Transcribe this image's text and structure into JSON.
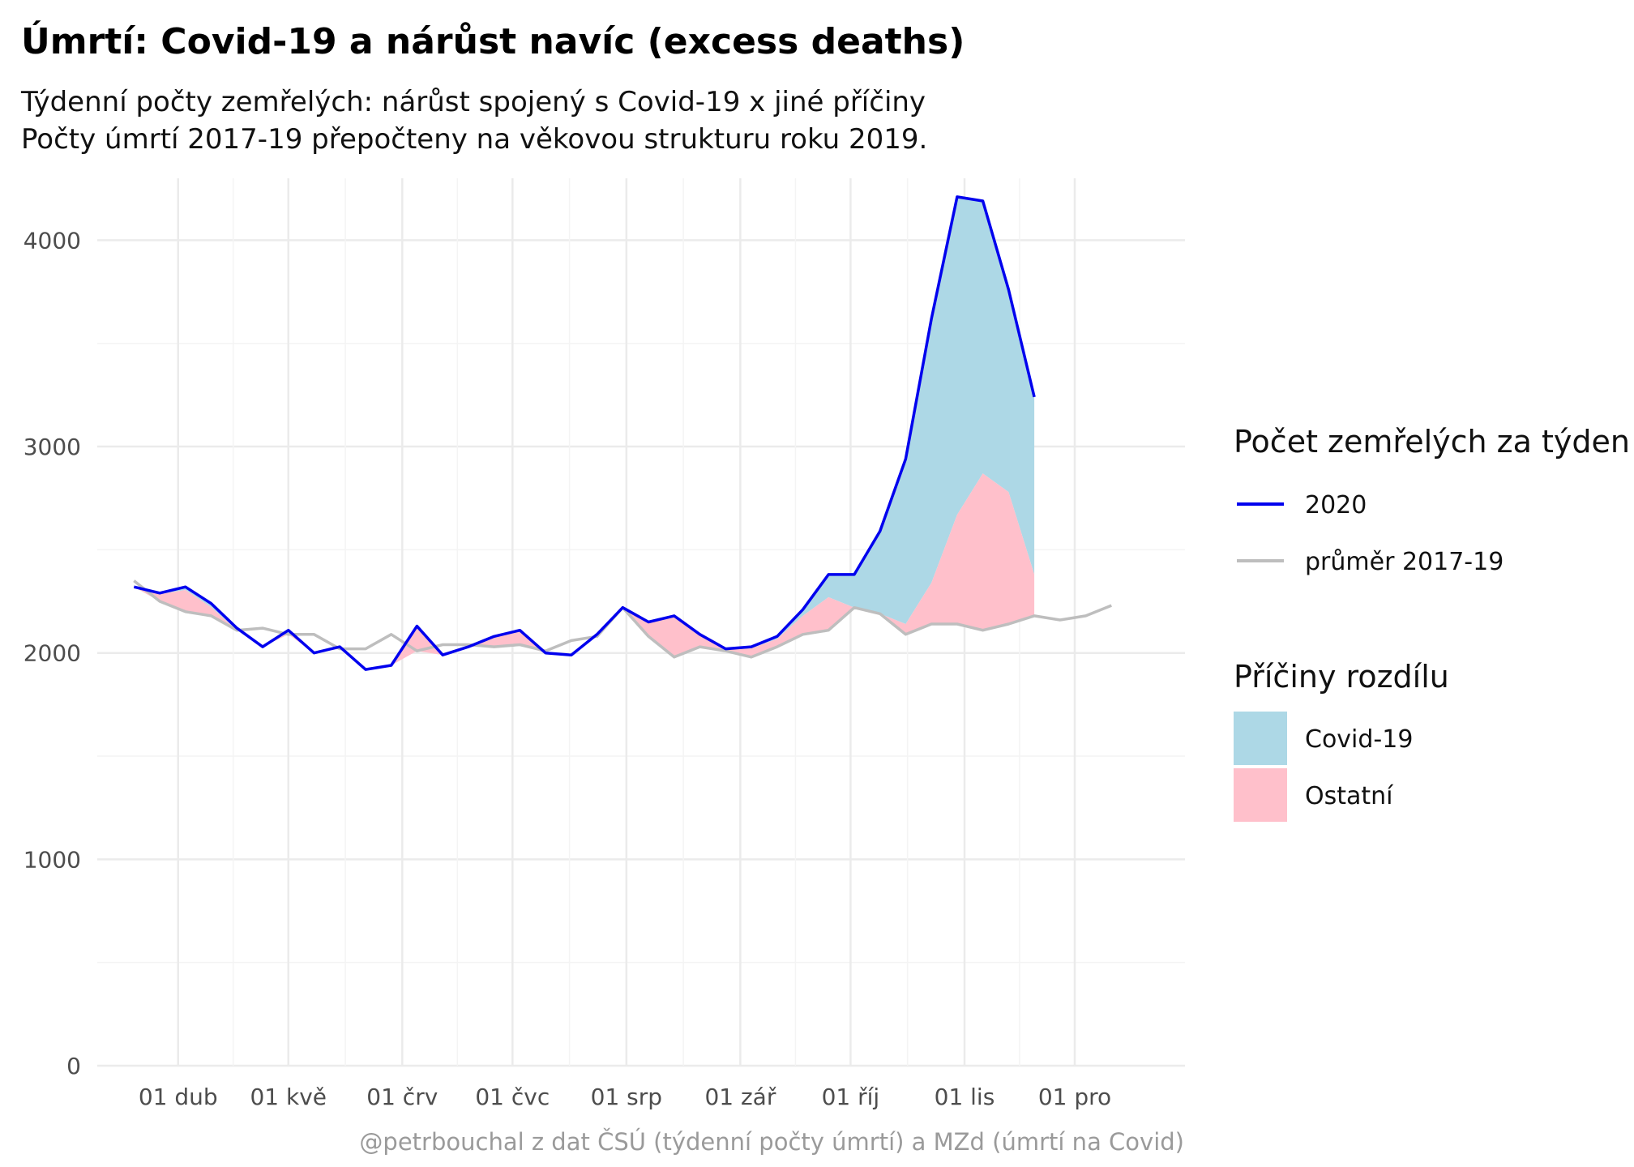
{
  "title": "Úmrtí: Covid-19 a nárůst navíc (excess deaths)",
  "subtitle_line1": "Týdenní počty zemřelých: nárůst spojený s Covid-19 x jiné příčiny",
  "subtitle_line2": "Počty úmrtí 2017-19 přepočteny na věkovou strukturu roku 2019.",
  "caption": "@petrbouchal z dat ČSÚ (týdenní počty úmrtí) a MZd (úmrtí na Covid)",
  "colors": {
    "line_2020": "#0000ee",
    "line_avg": "#bebebe",
    "covid": "#add8e6",
    "other": "#ffc0cb",
    "grid": "#ebebeb"
  },
  "legend": {
    "lines_title": "Počet zemřelých za týden",
    "lines": [
      {
        "label": "2020",
        "color": "#0000ee"
      },
      {
        "label": "průměr 2017-19",
        "color": "#bebebe"
      }
    ],
    "fills_title": "Příčiny rozdílu",
    "fills": [
      {
        "label": "Covid-19",
        "color": "#add8e6"
      },
      {
        "label": "Ostatní",
        "color": "#ffc0cb"
      }
    ]
  },
  "chart_data": {
    "type": "area",
    "title": "Úmrtí: Covid-19 a nárůst navíc (excess deaths)",
    "xlabel": "",
    "ylabel": "",
    "ylim": [
      0,
      4300
    ],
    "yticks": [
      0,
      1000,
      2000,
      3000,
      4000
    ],
    "xlim": [
      "2020-03-10",
      "2020-12-31"
    ],
    "xticks": [
      {
        "date": "2020-04-01",
        "label": "01 dub"
      },
      {
        "date": "2020-05-01",
        "label": "01 kvě"
      },
      {
        "date": "2020-06-01",
        "label": "01 črv"
      },
      {
        "date": "2020-07-01",
        "label": "01 čvc"
      },
      {
        "date": "2020-08-01",
        "label": "01 srp"
      },
      {
        "date": "2020-09-01",
        "label": "01 zář"
      },
      {
        "date": "2020-10-01",
        "label": "01 říj"
      },
      {
        "date": "2020-11-01",
        "label": "01 lis"
      },
      {
        "date": "2020-12-01",
        "label": "01 pro"
      }
    ],
    "grid": true,
    "legend_position": "right",
    "series": [
      {
        "name": "2020",
        "dates": [
          "2020-03-20",
          "2020-03-27",
          "2020-04-03",
          "2020-04-10",
          "2020-04-17",
          "2020-04-24",
          "2020-05-01",
          "2020-05-08",
          "2020-05-15",
          "2020-05-22",
          "2020-05-29",
          "2020-06-05",
          "2020-06-12",
          "2020-06-19",
          "2020-06-26",
          "2020-07-03",
          "2020-07-10",
          "2020-07-17",
          "2020-07-24",
          "2020-07-31",
          "2020-08-07",
          "2020-08-14",
          "2020-08-21",
          "2020-08-28",
          "2020-09-04",
          "2020-09-11",
          "2020-09-18",
          "2020-09-25",
          "2020-10-02",
          "2020-10-09",
          "2020-10-16",
          "2020-10-23",
          "2020-10-30",
          "2020-11-06",
          "2020-11-13",
          "2020-11-20"
        ],
        "values": [
          2320,
          2290,
          2320,
          2240,
          2120,
          2030,
          2110,
          2000,
          2030,
          1920,
          1940,
          2130,
          1990,
          2030,
          2080,
          2110,
          2000,
          1990,
          2090,
          2220,
          2150,
          2180,
          2090,
          2020,
          2030,
          2080,
          2210,
          2380,
          2380,
          2590,
          2940,
          3620,
          4210,
          4190,
          3760,
          3240
        ]
      },
      {
        "name": "průměr 2017-19",
        "dates": [
          "2020-03-20",
          "2020-03-27",
          "2020-04-03",
          "2020-04-10",
          "2020-04-17",
          "2020-04-24",
          "2020-05-01",
          "2020-05-08",
          "2020-05-15",
          "2020-05-22",
          "2020-05-29",
          "2020-06-05",
          "2020-06-12",
          "2020-06-19",
          "2020-06-26",
          "2020-07-03",
          "2020-07-10",
          "2020-07-17",
          "2020-07-24",
          "2020-07-31",
          "2020-08-07",
          "2020-08-14",
          "2020-08-21",
          "2020-08-28",
          "2020-09-04",
          "2020-09-11",
          "2020-09-18",
          "2020-09-25",
          "2020-10-02",
          "2020-10-09",
          "2020-10-16",
          "2020-10-23",
          "2020-10-30",
          "2020-11-06",
          "2020-11-13",
          "2020-11-20",
          "2020-11-27",
          "2020-12-04",
          "2020-12-11"
        ],
        "values": [
          2350,
          2250,
          2200,
          2180,
          2110,
          2120,
          2090,
          2090,
          2020,
          2020,
          2090,
          2010,
          2040,
          2040,
          2030,
          2040,
          2010,
          2060,
          2080,
          2220,
          2080,
          1980,
          2030,
          2010,
          1980,
          2030,
          2090,
          2110,
          2220,
          2190,
          2090,
          2140,
          2140,
          2110,
          2140,
          2180,
          2160,
          2180,
          2230
        ]
      },
      {
        "name": "Covid-19",
        "dates": [
          "2020-03-20",
          "2020-03-27",
          "2020-04-03",
          "2020-04-10",
          "2020-04-17",
          "2020-04-24",
          "2020-05-01",
          "2020-05-08",
          "2020-05-15",
          "2020-05-22",
          "2020-05-29",
          "2020-06-05",
          "2020-06-12",
          "2020-06-19",
          "2020-06-26",
          "2020-07-03",
          "2020-07-10",
          "2020-07-17",
          "2020-07-24",
          "2020-07-31",
          "2020-08-07",
          "2020-08-14",
          "2020-08-21",
          "2020-08-28",
          "2020-09-04",
          "2020-09-11",
          "2020-09-18",
          "2020-09-25",
          "2020-10-02",
          "2020-10-09",
          "2020-10-16",
          "2020-10-23",
          "2020-10-30",
          "2020-11-06",
          "2020-11-13",
          "2020-11-20"
        ],
        "values": [
          2,
          5,
          15,
          18,
          16,
          14,
          12,
          10,
          8,
          5,
          3,
          2,
          1,
          1,
          1,
          2,
          2,
          2,
          2,
          3,
          4,
          5,
          5,
          6,
          8,
          12,
          30,
          110,
          160,
          400,
          800,
          1280,
          1540,
          1320,
          980,
          860
        ]
      }
    ]
  }
}
